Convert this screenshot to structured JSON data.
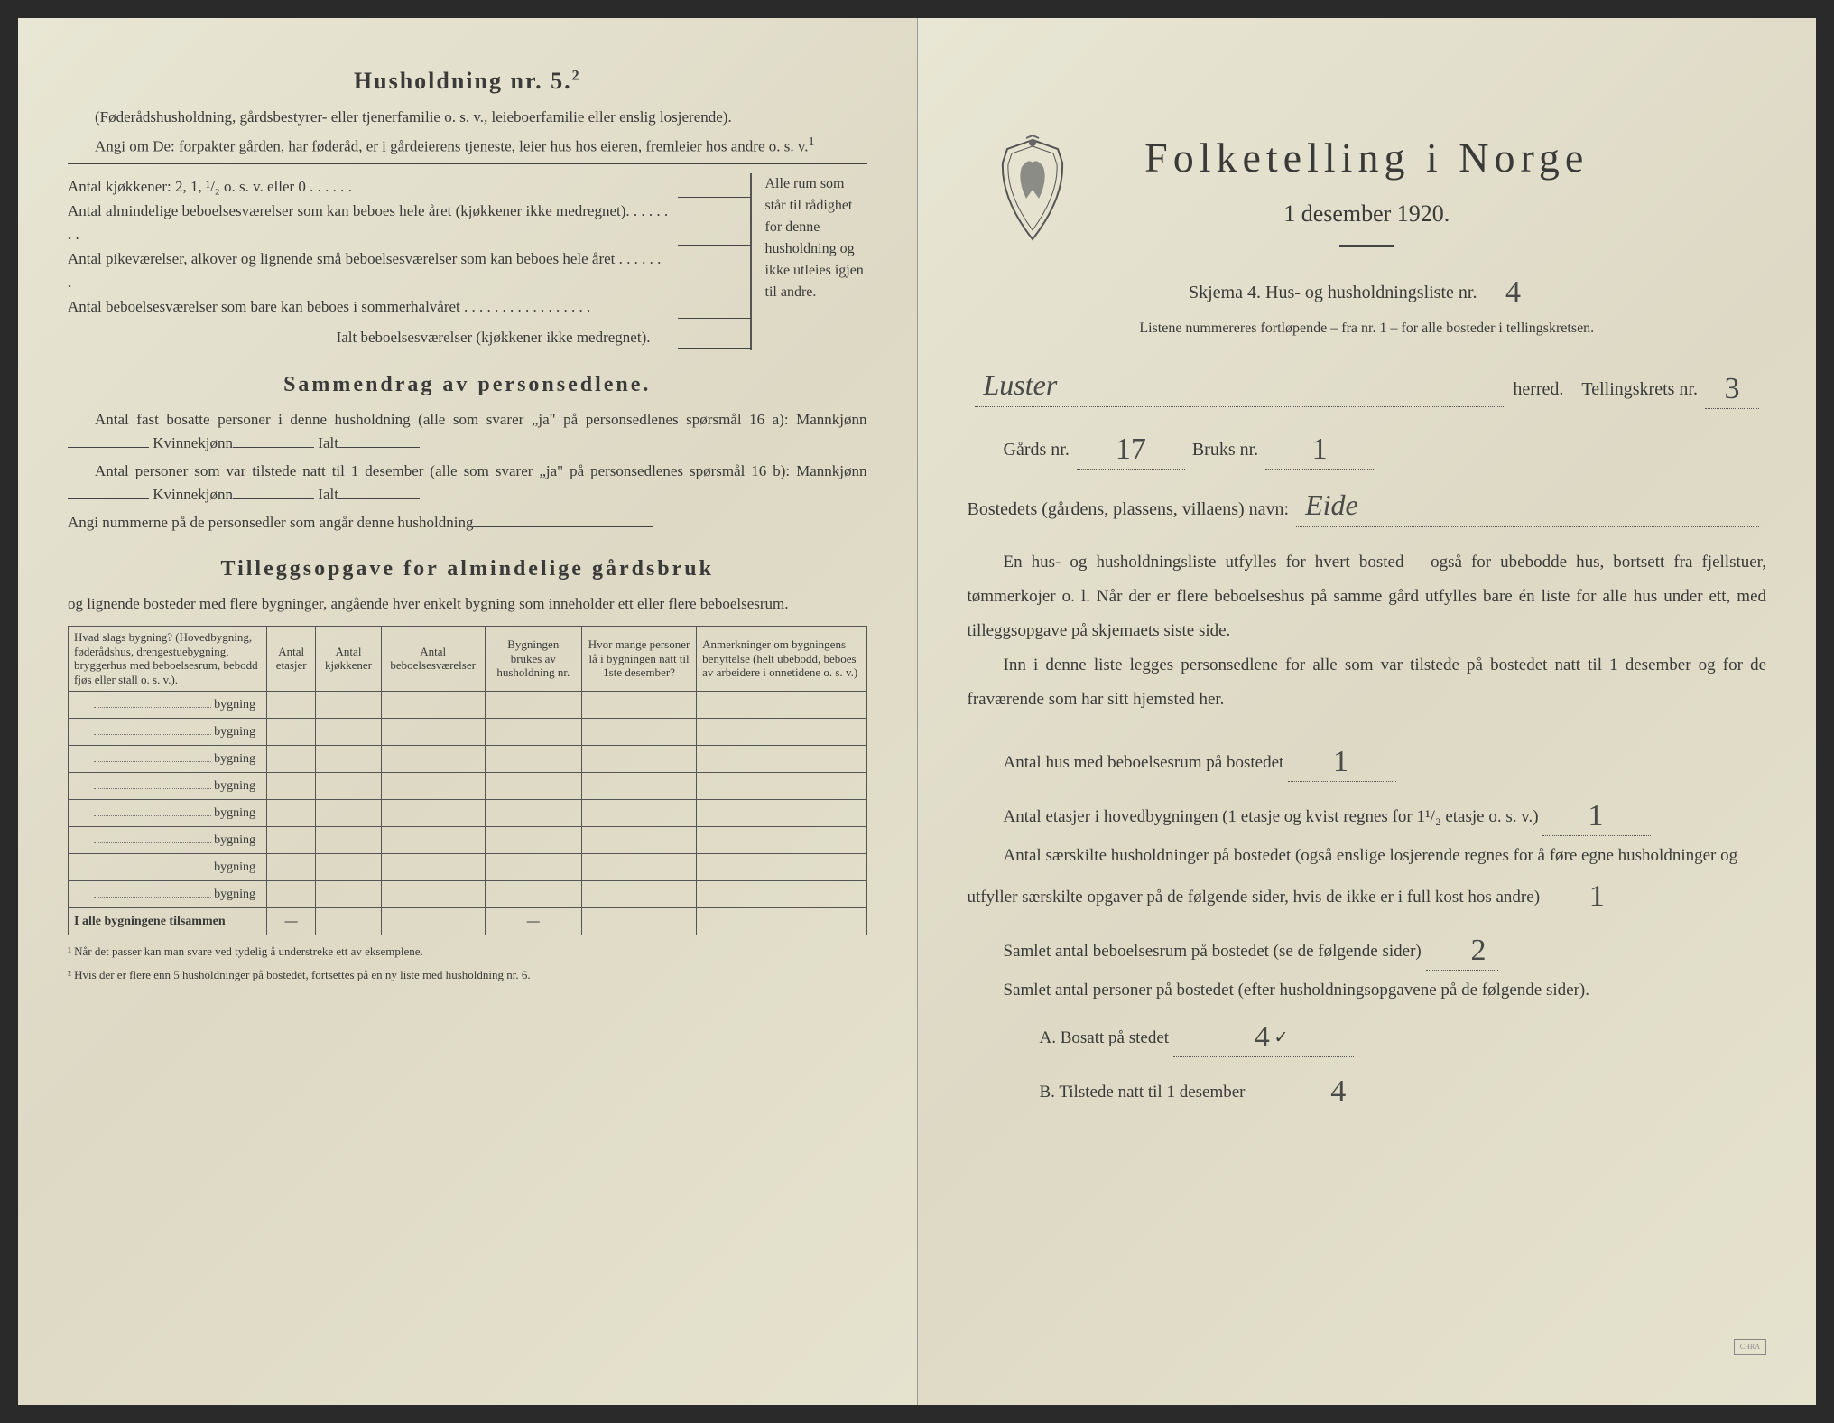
{
  "leftPage": {
    "h2": "Husholdning nr. 5.",
    "h2_sup": "2",
    "desc1": "(Føderådshusholdning, gårdsbestyrer- eller tjenerfamilie o. s. v., leieboerfamilie eller enslig losjerende).",
    "desc2": "Angi om De: forpakter gården, har føderåd, er i gårdeierens tjeneste, leier hus hos eieren, fremleier hos andre o. s. v.",
    "desc2_sup": "1",
    "kitchens_line": "Antal kjøkkener: 2, 1, ¹/₂ o. s. v. eller 0 . . . . . .",
    "room1": "Antal almindelige beboelsesværelser som kan beboes hele året (kjøkkener ikke medregnet). . . . . . . .",
    "room2": "Antal pikeværelser, alkover og lignende små beboelsesværelser som kan beboes hele året . . . . . . .",
    "room3": "Antal beboelsesværelser som bare kan beboes i sommerhalvåret . . . . . . . . . . . . . . . . .",
    "room_total": "Ialt beboelsesværelser (kjøkkener ikke medregnet).",
    "room_note": "Alle rum som står til rådighet for denne husholdning og ikke utleies igjen til andre.",
    "h3_sammendrag": "Sammendrag av personsedlene.",
    "s1": "Antal fast bosatte personer i denne husholdning (alle som svarer „ja\" på personsedlenes spørsmål 16 a): Mannkjønn",
    "s1_k": "Kvinnekjønn",
    "s1_i": "Ialt",
    "s2": "Antal personer som var tilstede natt til 1 desember (alle som svarer „ja\" på personsedlenes spørsmål 16 b): Mannkjønn",
    "s2_k": "Kvinnekjønn",
    "s2_i": "Ialt",
    "s3": "Angi nummerne på de personsedler som angår denne husholdning",
    "h3_tillegg": "Tilleggsopgave for almindelige gårdsbruk",
    "tillegg_desc": "og lignende bosteder med flere bygninger, angående hver enkelt bygning som inneholder ett eller flere beboelsesrum.",
    "table": {
      "headers": [
        "Hvad slags bygning?\n(Hovedbygning, føderådshus, drengestuebygning, bryggerhus med beboelsesrum, bebodd fjøs eller stall o. s. v.).",
        "Antal etasjer",
        "Antal kjøkkener",
        "Antal beboelsesværelser",
        "Bygningen brukes av husholdning nr.",
        "Hvor mange personer lå i bygningen natt til 1ste desember?",
        "Anmerkninger om bygningens benyttelse (helt ubebodd, beboes av arbeidere i onnetidene o. s. v.)"
      ],
      "row_label": "bygning",
      "row_count": 8,
      "sum_label": "I alle bygningene tilsammen",
      "dash": "—"
    },
    "footnote1": "¹ Når det passer kan man svare ved tydelig å understreke ett av eksemplene.",
    "footnote2": "² Hvis der er flere enn 5 husholdninger på bostedet, fortsettes på en ny liste med husholdning nr. 6."
  },
  "rightPage": {
    "title": "Folketelling i Norge",
    "subtitle": "1 desember 1920.",
    "skjema": "Skjema 4.  Hus- og husholdningsliste nr.",
    "skjema_val": "4",
    "listene": "Listene nummereres fortløpende – fra nr. 1 – for alle bosteder i tellingskretsen.",
    "herred_val": "Luster",
    "herred_lbl": "herred.",
    "krets_lbl": "Tellingskrets nr.",
    "krets_val": "3",
    "gards_lbl": "Gårds nr.",
    "gards_val": "17",
    "bruks_lbl": "Bruks nr.",
    "bruks_val": "1",
    "bosted_lbl": "Bostedets (gårdens, plassens, villaens) navn:",
    "bosted_val": "Eide",
    "body1": "En hus- og husholdningsliste utfylles for hvert bosted – også for ubebodde hus, bortsett fra fjellstuer, tømmerkojer o. l. Når der er flere beboelseshus på samme gård utfylles bare én liste for alle hus under ett, med tilleggsopgave på skjemaets siste side.",
    "body2": "Inn i denne liste legges personsedlene for alle som var tilstede på bostedet natt til 1 desember og for de fraværende som har sitt hjemsted her.",
    "q1": "Antal hus med beboelsesrum på bostedet",
    "q1_val": "1",
    "q2a": "Antal etasjer i hovedbygningen (1 etasje og kvist regnes for 1¹/₂ etasje o. s. v.)",
    "q2_val": "1",
    "q3": "Antal særskilte husholdninger på bostedet (også enslige losjerende regnes for å føre egne husholdninger og utfyller særskilte opgaver på de følgende sider, hvis de ikke er i full kost hos andre)",
    "q3_val": "1",
    "q4": "Samlet antal beboelsesrum på bostedet (se de følgende sider)",
    "q4_val": "2",
    "q5": "Samlet antal personer på bostedet (efter husholdningsopgavene på de følgende sider).",
    "qA": "A.  Bosatt på stedet",
    "qA_val": "4",
    "qB": "B.  Tilstede natt til 1 desember",
    "qB_val": "4"
  }
}
